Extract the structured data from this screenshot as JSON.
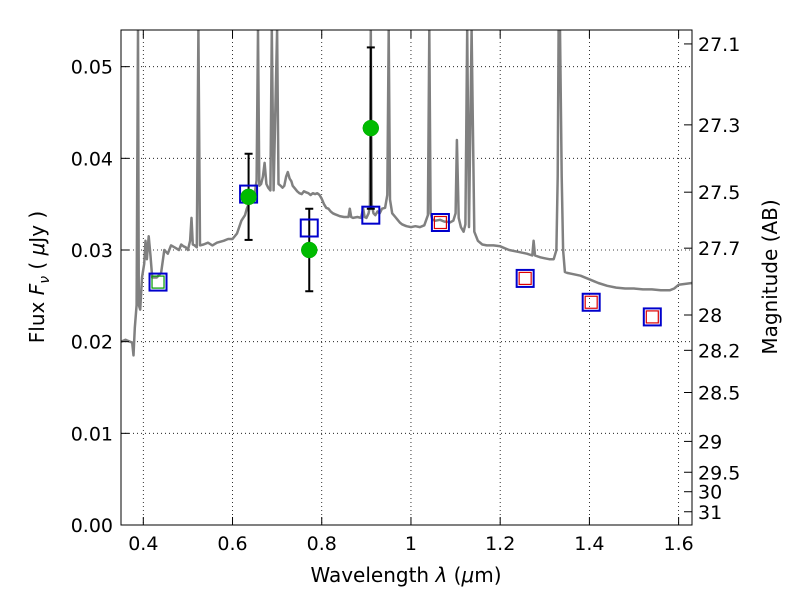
{
  "chart_data": {
    "type": "scatter",
    "title": "",
    "xlabel": "Wavelength  λ (μm)",
    "ylabel": "Flux  F_ν  ( μJy )",
    "ylabel_parts": {
      "pre": "Flux  ",
      "sym": "F",
      "sub": "ν",
      "mid": "  ( ",
      "mu": "μ",
      "post": "Jy )"
    },
    "xlabel_parts": {
      "pre": "Wavelength  ",
      "sym": "λ",
      "paren": " (",
      "mu": "μ",
      "unit": "m)"
    },
    "y2label": "Magnitude (AB)",
    "xlim": [
      0.35,
      1.63
    ],
    "ylim": [
      0.0,
      0.054
    ],
    "grid": true,
    "x_ticks": [
      0.4,
      0.6,
      0.8,
      1.0,
      1.2,
      1.4,
      1.6
    ],
    "x_tick_labels": [
      "0.4",
      "0.6",
      "0.8",
      "1",
      "1.2",
      "1.4",
      "1.6"
    ],
    "y_ticks": [
      0.0,
      0.01,
      0.02,
      0.03,
      0.04,
      0.05
    ],
    "y_tick_labels": [
      "0.00",
      "0.01",
      "0.02",
      "0.03",
      "0.04",
      "0.05"
    ],
    "y2_ticks": [
      27.1,
      27.3,
      27.5,
      27.7,
      28,
      28.2,
      28.5,
      29,
      29.5,
      30,
      31
    ],
    "y2_tick_labels": [
      "27.1",
      "27.3",
      "27.5",
      "27.7",
      "28",
      "28.2",
      "28.5",
      "29",
      "29.5",
      "30",
      "31"
    ],
    "colors": {
      "spectrum": "#808080",
      "observed": "#00bb00",
      "errorbar": "#000000",
      "model_blue": "#0000cc",
      "model_red": "#dd0000",
      "model_green": "#009900"
    },
    "spectrum": [
      [
        0.35,
        0.02
      ],
      [
        0.36,
        0.0202
      ],
      [
        0.37,
        0.02
      ],
      [
        0.375,
        0.0199
      ],
      [
        0.378,
        0.0185
      ],
      [
        0.381,
        0.0215
      ],
      [
        0.385,
        0.024
      ],
      [
        0.388,
        0.054
      ],
      [
        0.39,
        0.024
      ],
      [
        0.393,
        0.0235
      ],
      [
        0.397,
        0.027
      ],
      [
        0.402,
        0.0285
      ],
      [
        0.405,
        0.031
      ],
      [
        0.408,
        0.029
      ],
      [
        0.412,
        0.0315
      ],
      [
        0.416,
        0.0295
      ],
      [
        0.42,
        0.027
      ],
      [
        0.43,
        0.027
      ],
      [
        0.44,
        0.0275
      ],
      [
        0.447,
        0.03
      ],
      [
        0.455,
        0.0296
      ],
      [
        0.462,
        0.0305
      ],
      [
        0.47,
        0.0303
      ],
      [
        0.48,
        0.03
      ],
      [
        0.485,
        0.0306
      ],
      [
        0.49,
        0.0304
      ],
      [
        0.495,
        0.0303
      ],
      [
        0.5,
        0.03
      ],
      [
        0.505,
        0.031
      ],
      [
        0.508,
        0.0335
      ],
      [
        0.511,
        0.0306
      ],
      [
        0.515,
        0.0305
      ],
      [
        0.52,
        0.0303
      ],
      [
        0.5235,
        0.054
      ],
      [
        0.527,
        0.0305
      ],
      [
        0.535,
        0.0306
      ],
      [
        0.545,
        0.0308
      ],
      [
        0.555,
        0.0305
      ],
      [
        0.565,
        0.0308
      ],
      [
        0.58,
        0.031
      ],
      [
        0.59,
        0.0312
      ],
      [
        0.6,
        0.0312
      ],
      [
        0.61,
        0.0318
      ],
      [
        0.62,
        0.0332
      ],
      [
        0.628,
        0.0338
      ],
      [
        0.632,
        0.0345
      ],
      [
        0.636,
        0.035
      ],
      [
        0.64,
        0.0355
      ],
      [
        0.645,
        0.036
      ],
      [
        0.65,
        0.0362
      ],
      [
        0.654,
        0.0376
      ],
      [
        0.657,
        0.054
      ],
      [
        0.66,
        0.037
      ],
      [
        0.664,
        0.0372
      ],
      [
        0.668,
        0.038
      ],
      [
        0.672,
        0.0395
      ],
      [
        0.676,
        0.0372
      ],
      [
        0.68,
        0.0368
      ],
      [
        0.685,
        0.0365
      ],
      [
        0.688,
        0.054
      ],
      [
        0.692,
        0.0365
      ],
      [
        0.7,
        0.054
      ],
      [
        0.703,
        0.0372
      ],
      [
        0.708,
        0.037
      ],
      [
        0.712,
        0.0368
      ],
      [
        0.716,
        0.037
      ],
      [
        0.72,
        0.038
      ],
      [
        0.724,
        0.0385
      ],
      [
        0.728,
        0.0378
      ],
      [
        0.732,
        0.0375
      ],
      [
        0.735,
        0.037
      ],
      [
        0.74,
        0.0367
      ],
      [
        0.745,
        0.0364
      ],
      [
        0.75,
        0.0362
      ],
      [
        0.755,
        0.0361
      ],
      [
        0.76,
        0.0364
      ],
      [
        0.765,
        0.0363
      ],
      [
        0.77,
        0.0362
      ],
      [
        0.775,
        0.036
      ],
      [
        0.78,
        0.0362
      ],
      [
        0.785,
        0.0361
      ],
      [
        0.79,
        0.0362
      ],
      [
        0.795,
        0.036
      ],
      [
        0.8,
        0.0356
      ],
      [
        0.805,
        0.035
      ],
      [
        0.81,
        0.0346
      ],
      [
        0.815,
        0.0345
      ],
      [
        0.82,
        0.0342
      ],
      [
        0.825,
        0.034
      ],
      [
        0.83,
        0.0339
      ],
      [
        0.835,
        0.0338
      ],
      [
        0.84,
        0.0337
      ],
      [
        0.85,
        0.0336
      ],
      [
        0.86,
        0.0336
      ],
      [
        0.863,
        0.0345
      ],
      [
        0.866,
        0.0336
      ],
      [
        0.87,
        0.0335
      ],
      [
        0.88,
        0.0336
      ],
      [
        0.888,
        0.0335
      ],
      [
        0.893,
        0.0345
      ],
      [
        0.896,
        0.0336
      ],
      [
        0.9,
        0.0335
      ],
      [
        0.905,
        0.034
      ],
      [
        0.908,
        0.0348
      ],
      [
        0.91,
        0.054
      ],
      [
        0.912,
        0.035
      ],
      [
        0.916,
        0.034
      ],
      [
        0.92,
        0.0338
      ],
      [
        0.925,
        0.0342
      ],
      [
        0.93,
        0.034
      ],
      [
        0.935,
        0.0345
      ],
      [
        0.942,
        0.0346
      ],
      [
        0.947,
        0.036
      ],
      [
        0.95,
        0.054
      ],
      [
        0.953,
        0.0355
      ],
      [
        0.958,
        0.034
      ],
      [
        0.965,
        0.0336
      ],
      [
        0.97,
        0.0333
      ],
      [
        0.975,
        0.033
      ],
      [
        0.98,
        0.0328
      ],
      [
        0.985,
        0.0327
      ],
      [
        0.99,
        0.0326
      ],
      [
        1.0,
        0.0325
      ],
      [
        1.01,
        0.0326
      ],
      [
        1.02,
        0.0325
      ],
      [
        1.03,
        0.0327
      ],
      [
        1.038,
        0.0338
      ],
      [
        1.041,
        0.054
      ],
      [
        1.044,
        0.034
      ],
      [
        1.048,
        0.0333
      ],
      [
        1.055,
        0.0332
      ],
      [
        1.065,
        0.0333
      ],
      [
        1.075,
        0.0331
      ],
      [
        1.08,
        0.0331
      ],
      [
        1.087,
        0.033
      ],
      [
        1.095,
        0.0332
      ],
      [
        1.1,
        0.034
      ],
      [
        1.103,
        0.042
      ],
      [
        1.107,
        0.0335
      ],
      [
        1.112,
        0.0325
      ],
      [
        1.118,
        0.032
      ],
      [
        1.122,
        0.0328
      ],
      [
        1.126,
        0.054
      ],
      [
        1.13,
        0.0325
      ],
      [
        1.136,
        0.054
      ],
      [
        1.142,
        0.032
      ],
      [
        1.15,
        0.031
      ],
      [
        1.16,
        0.0306
      ],
      [
        1.17,
        0.0305
      ],
      [
        1.185,
        0.0305
      ],
      [
        1.2,
        0.0304
      ],
      [
        1.21,
        0.0302
      ],
      [
        1.22,
        0.03
      ],
      [
        1.24,
        0.0298
      ],
      [
        1.26,
        0.0296
      ],
      [
        1.272,
        0.0294
      ],
      [
        1.275,
        0.031
      ],
      [
        1.278,
        0.0294
      ],
      [
        1.29,
        0.0292
      ],
      [
        1.3,
        0.0291
      ],
      [
        1.31,
        0.029
      ],
      [
        1.32,
        0.029
      ],
      [
        1.326,
        0.03
      ],
      [
        1.329,
        0.038
      ],
      [
        1.331,
        0.054
      ],
      [
        1.334,
        0.054
      ],
      [
        1.338,
        0.038
      ],
      [
        1.341,
        0.03
      ],
      [
        1.345,
        0.0276
      ],
      [
        1.35,
        0.0275
      ],
      [
        1.36,
        0.0274
      ],
      [
        1.38,
        0.0272
      ],
      [
        1.4,
        0.0268
      ],
      [
        1.41,
        0.0266
      ],
      [
        1.42,
        0.0264
      ],
      [
        1.44,
        0.0261
      ],
      [
        1.46,
        0.0259
      ],
      [
        1.48,
        0.0258
      ],
      [
        1.5,
        0.0258
      ],
      [
        1.52,
        0.0257
      ],
      [
        1.54,
        0.0257
      ],
      [
        1.56,
        0.0256
      ],
      [
        1.58,
        0.0256
      ],
      [
        1.59,
        0.0258
      ],
      [
        1.6,
        0.0262
      ],
      [
        1.615,
        0.0263
      ],
      [
        1.63,
        0.0264
      ]
    ],
    "observed": [
      {
        "x": 0.636,
        "y": 0.0358,
        "yerr": 0.0047
      },
      {
        "x": 0.772,
        "y": 0.03,
        "yerr": 0.0045
      },
      {
        "x": 0.91,
        "y": 0.0433,
        "yerr": 0.0088
      }
    ],
    "model_squares": [
      {
        "x": 0.433,
        "y": 0.0265,
        "inner": "green"
      },
      {
        "x": 0.636,
        "y": 0.0361,
        "inner": "blue"
      },
      {
        "x": 0.772,
        "y": 0.0324,
        "inner": "blue"
      },
      {
        "x": 0.91,
        "y": 0.0338,
        "inner": "blue"
      },
      {
        "x": 1.066,
        "y": 0.033,
        "inner": "red"
      },
      {
        "x": 1.256,
        "y": 0.0269,
        "inner": "red"
      },
      {
        "x": 1.404,
        "y": 0.0243,
        "inner": "red"
      },
      {
        "x": 1.541,
        "y": 0.0227,
        "inner": "red"
      }
    ]
  }
}
